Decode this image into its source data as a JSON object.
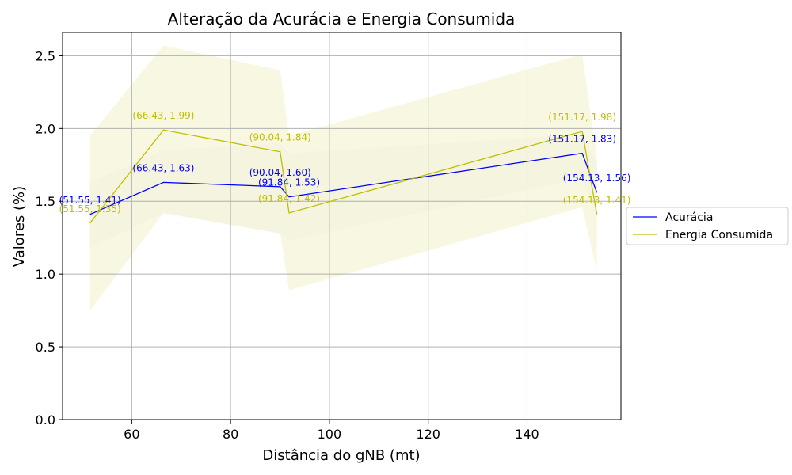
{
  "chart_data": {
    "type": "line",
    "title": "Alteração da Acurácia e Energia Consumida",
    "xlabel": "Distância do gNB (mt)",
    "ylabel": "Valores (%)",
    "xlim": [
      46,
      159
    ],
    "ylim": [
      0,
      2.66
    ],
    "xticks": [
      60,
      80,
      100,
      120,
      140
    ],
    "yticks": [
      0.0,
      0.5,
      1.0,
      1.5,
      2.0,
      2.5
    ],
    "grid": true,
    "legend_position": "right",
    "x": [
      51.55,
      66.43,
      90.04,
      91.84,
      151.17,
      154.13
    ],
    "series": [
      {
        "name": "Acurácia",
        "color": "#0000ff",
        "band_color": "#d8d6e0",
        "values": [
          1.41,
          1.63,
          1.6,
          1.53,
          1.83,
          1.56
        ],
        "band_lower": [
          1.18,
          1.42,
          1.28,
          1.23,
          1.66,
          1.41
        ],
        "band_upper": [
          1.63,
          1.85,
          1.9,
          1.83,
          1.96,
          1.76
        ],
        "labels": [
          "(51.55, 1.41)",
          "(66.43, 1.63)",
          "(90.04, 1.60)",
          "(91.84, 1.53)",
          "(151.17, 1.83)",
          "(154.13, 1.56)"
        ]
      },
      {
        "name": "Energia Consumida",
        "color": "#bfbf00",
        "band_color": "#f7f6de",
        "values": [
          1.35,
          1.99,
          1.84,
          1.42,
          1.98,
          1.41
        ],
        "band_lower": [
          0.75,
          1.42,
          1.28,
          0.89,
          1.46,
          1.02
        ],
        "band_upper": [
          1.95,
          2.57,
          2.4,
          1.95,
          2.51,
          1.8
        ],
        "labels": [
          "(51.55, 1.35)",
          "(66.43, 1.99)",
          "(90.04, 1.84)",
          "(91.84, 1.42)",
          "(151.17, 1.98)",
          "(154.13, 1.41)"
        ]
      }
    ]
  }
}
